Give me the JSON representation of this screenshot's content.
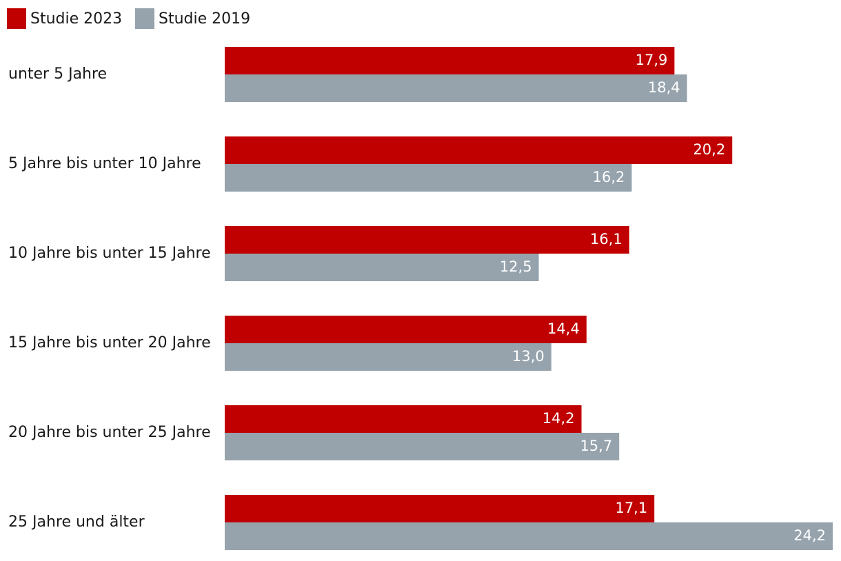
{
  "chart_data": {
    "type": "bar",
    "orientation": "horizontal",
    "title": "",
    "xlabel": "",
    "ylabel": "",
    "xlim": [
      0,
      24.2
    ],
    "grid": false,
    "legend_position": "top-left",
    "categories": [
      "unter 5 Jahre",
      "5 Jahre bis unter 10 Jahre",
      "10 Jahre bis unter 15 Jahre",
      "15 Jahre bis unter 20 Jahre",
      "20 Jahre bis unter 25 Jahre",
      "25 Jahre und älter"
    ],
    "series": [
      {
        "name": "Studie 2023",
        "color": "#c00000",
        "values": [
          17.9,
          20.2,
          16.1,
          14.4,
          14.2,
          17.1
        ],
        "labels": [
          "17,9",
          "20,2",
          "16,1",
          "14,4",
          "14,2",
          "17,1"
        ]
      },
      {
        "name": "Studie 2019",
        "color": "#96a3ad",
        "values": [
          18.4,
          16.2,
          12.5,
          13.0,
          15.7,
          24.2
        ],
        "labels": [
          "18,4",
          "16,2",
          "12,5",
          "13,0",
          "15,7",
          "24,2"
        ]
      }
    ]
  }
}
